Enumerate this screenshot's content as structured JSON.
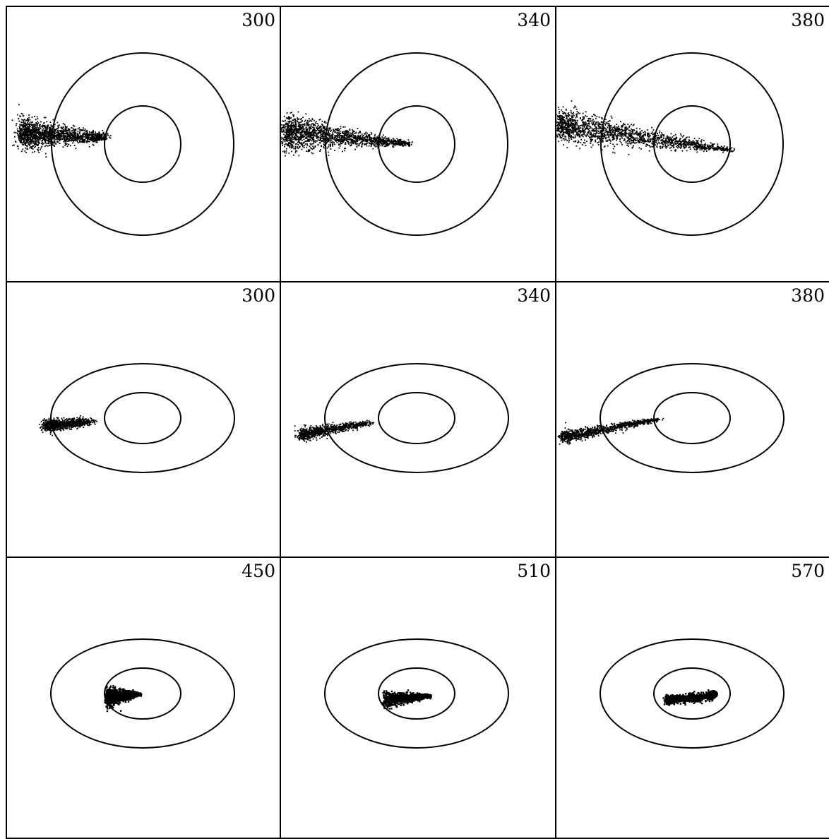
{
  "figure": {
    "rows": [
      {
        "row_index": 0,
        "shape": "circular",
        "panels": [
          {
            "label": "300"
          },
          {
            "label": "340"
          },
          {
            "label": "380"
          }
        ]
      },
      {
        "row_index": 1,
        "shape": "elliptical",
        "panels": [
          {
            "label": "300"
          },
          {
            "label": "340"
          },
          {
            "label": "380"
          }
        ]
      },
      {
        "row_index": 2,
        "shape": "elliptical",
        "panels": [
          {
            "label": "450"
          },
          {
            "label": "510"
          },
          {
            "label": "570"
          }
        ]
      }
    ],
    "colors": {
      "ink": "#000000",
      "background": "#ffffff"
    }
  }
}
